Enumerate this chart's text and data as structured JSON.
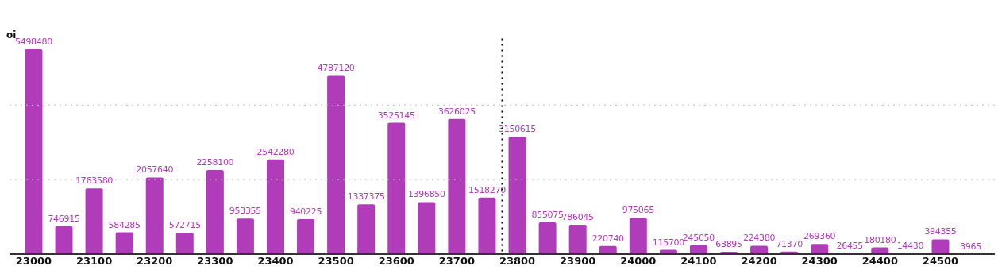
{
  "chart_data": {
    "type": "bar",
    "ylabel": "oi",
    "x": [
      23000,
      23050,
      23100,
      23150,
      23200,
      23250,
      23300,
      23350,
      23400,
      23450,
      23500,
      23550,
      23600,
      23650,
      23700,
      23750,
      23800,
      23850,
      23900,
      23950,
      24000,
      24050,
      24100,
      24150,
      24200,
      24250,
      24300,
      24350,
      24400,
      24450,
      24500,
      24550
    ],
    "values": [
      5498480,
      746915,
      1763580,
      584285,
      2057640,
      572715,
      2258100,
      953355,
      2542280,
      940225,
      4787120,
      1337375,
      3525145,
      1396850,
      3626025,
      1518270,
      3150615,
      855075,
      786045,
      220740,
      975065,
      115700,
      245050,
      63895,
      224380,
      71370,
      269360,
      26455,
      180180,
      14430,
      394355,
      3965
    ],
    "color": "#b03cb9",
    "data_labels": true,
    "xlim": [
      22960,
      24590
    ],
    "xticks": [
      23000,
      23100,
      23200,
      23300,
      23400,
      23500,
      23600,
      23700,
      23800,
      23900,
      24000,
      24100,
      24200,
      24300,
      24400,
      24500
    ],
    "ylim": [
      0,
      5498480
    ],
    "tick_labels": "x",
    "ref_lines": [
      {
        "axis": "x",
        "value": 23775,
        "color": "#000000",
        "line_style": "dotted"
      },
      {
        "axis": "y",
        "value": 2000000,
        "color": "#bbbbbb",
        "line_style": "dotted"
      },
      {
        "axis": "y",
        "value": 4000000,
        "color": "#bbbbbb",
        "line_style": "dotted"
      }
    ]
  }
}
